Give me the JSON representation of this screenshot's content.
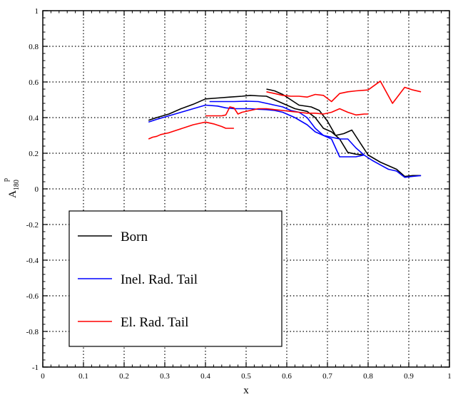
{
  "chart_data": {
    "type": "line",
    "xlabel": "x",
    "ylabel": "A",
    "ylabel_sup": "p",
    "ylabel_sub": "180",
    "xlim": [
      0,
      1
    ],
    "ylim": [
      -1,
      1
    ],
    "x_ticks": [
      0,
      0.1,
      0.2,
      0.3,
      0.4,
      0.5,
      0.6,
      0.7,
      0.8,
      0.9,
      1
    ],
    "x_tick_labels": [
      "0",
      "0.1",
      "0.2",
      "0.3",
      "0.4",
      "0.5",
      "0.6",
      "0.7",
      "0.8",
      "0.9",
      "1"
    ],
    "y_ticks": [
      -1,
      -0.8,
      -0.6,
      -0.4,
      -0.2,
      0,
      0.2,
      0.4,
      0.6,
      0.8,
      1
    ],
    "y_tick_labels": [
      "-1",
      "-0.8",
      "-0.6",
      "-0.4",
      "-0.2",
      "0",
      "0.2",
      "0.4",
      "0.6",
      "0.8",
      "1"
    ],
    "grid": true,
    "legend_position": "bottom-left",
    "series": [
      {
        "name": "Born",
        "color": "#000000",
        "segments": [
          [
            [
              0.26,
              0.385
            ],
            [
              0.28,
              0.4
            ],
            [
              0.31,
              0.42
            ],
            [
              0.34,
              0.45
            ],
            [
              0.37,
              0.475
            ],
            [
              0.4,
              0.505
            ],
            [
              0.43,
              0.51
            ],
            [
              0.46,
              0.515
            ],
            [
              0.49,
              0.52
            ],
            [
              0.51,
              0.525
            ],
            [
              0.53,
              0.522
            ],
            [
              0.55,
              0.52
            ],
            [
              0.57,
              0.5
            ],
            [
              0.59,
              0.48
            ],
            [
              0.62,
              0.45
            ],
            [
              0.65,
              0.435
            ],
            [
              0.67,
              0.4
            ],
            [
              0.69,
              0.34
            ],
            [
              0.71,
              0.32
            ],
            [
              0.73,
              0.28
            ],
            [
              0.75,
              0.205
            ],
            [
              0.77,
              0.195
            ],
            [
              0.79,
              0.19
            ]
          ],
          [
            [
              0.55,
              0.56
            ],
            [
              0.57,
              0.55
            ],
            [
              0.59,
              0.53
            ],
            [
              0.61,
              0.5
            ],
            [
              0.63,
              0.47
            ],
            [
              0.66,
              0.46
            ],
            [
              0.68,
              0.44
            ],
            [
              0.7,
              0.38
            ],
            [
              0.72,
              0.3
            ],
            [
              0.74,
              0.31
            ],
            [
              0.76,
              0.33
            ],
            [
              0.78,
              0.26
            ],
            [
              0.8,
              0.19
            ],
            [
              0.83,
              0.15
            ],
            [
              0.85,
              0.13
            ],
            [
              0.87,
              0.11
            ],
            [
              0.89,
              0.07
            ],
            [
              0.91,
              0.075
            ],
            [
              0.93,
              0.075
            ]
          ]
        ]
      },
      {
        "name": "Inel. Rad. Tail",
        "color": "#0000ff",
        "segments": [
          [
            [
              0.26,
              0.375
            ],
            [
              0.28,
              0.39
            ],
            [
              0.31,
              0.41
            ],
            [
              0.34,
              0.43
            ],
            [
              0.37,
              0.45
            ],
            [
              0.4,
              0.47
            ],
            [
              0.43,
              0.465
            ],
            [
              0.45,
              0.455
            ],
            [
              0.47,
              0.45
            ],
            [
              0.49,
              0.45
            ],
            [
              0.51,
              0.45
            ],
            [
              0.53,
              0.447
            ],
            [
              0.55,
              0.445
            ],
            [
              0.57,
              0.44
            ],
            [
              0.59,
              0.43
            ],
            [
              0.62,
              0.4
            ],
            [
              0.65,
              0.36
            ],
            [
              0.67,
              0.32
            ],
            [
              0.69,
              0.3
            ],
            [
              0.71,
              0.28
            ],
            [
              0.73,
              0.18
            ],
            [
              0.75,
              0.18
            ],
            [
              0.77,
              0.18
            ],
            [
              0.79,
              0.19
            ]
          ],
          [
            [
              0.41,
              0.49
            ],
            [
              0.44,
              0.49
            ],
            [
              0.47,
              0.49
            ],
            [
              0.5,
              0.492
            ],
            [
              0.53,
              0.49
            ],
            [
              0.55,
              0.48
            ],
            [
              0.57,
              0.47
            ],
            [
              0.59,
              0.46
            ],
            [
              0.61,
              0.44
            ],
            [
              0.63,
              0.43
            ],
            [
              0.65,
              0.4
            ],
            [
              0.67,
              0.34
            ],
            [
              0.69,
              0.3
            ],
            [
              0.71,
              0.29
            ],
            [
              0.73,
              0.28
            ],
            [
              0.75,
              0.28
            ],
            [
              0.77,
              0.23
            ],
            [
              0.79,
              0.19
            ],
            [
              0.81,
              0.16
            ],
            [
              0.83,
              0.135
            ],
            [
              0.85,
              0.11
            ],
            [
              0.87,
              0.1
            ],
            [
              0.89,
              0.065
            ],
            [
              0.91,
              0.07
            ],
            [
              0.93,
              0.075
            ]
          ]
        ]
      },
      {
        "name": "El. Rad. Tail",
        "color": "#ff0000",
        "segments": [
          [
            [
              0.26,
              0.28
            ],
            [
              0.27,
              0.29
            ],
            [
              0.28,
              0.295
            ],
            [
              0.29,
              0.305
            ],
            [
              0.3,
              0.31
            ],
            [
              0.31,
              0.315
            ],
            [
              0.33,
              0.33
            ],
            [
              0.35,
              0.345
            ],
            [
              0.37,
              0.36
            ],
            [
              0.39,
              0.37
            ],
            [
              0.4,
              0.375
            ],
            [
              0.42,
              0.365
            ],
            [
              0.44,
              0.35
            ],
            [
              0.45,
              0.34
            ],
            [
              0.47,
              0.34
            ]
          ],
          [
            [
              0.4,
              0.41
            ],
            [
              0.42,
              0.41
            ],
            [
              0.44,
              0.41
            ],
            [
              0.45,
              0.415
            ],
            [
              0.46,
              0.46
            ],
            [
              0.47,
              0.455
            ],
            [
              0.48,
              0.42
            ],
            [
              0.49,
              0.43
            ],
            [
              0.51,
              0.44
            ],
            [
              0.53,
              0.45
            ],
            [
              0.55,
              0.45
            ],
            [
              0.57,
              0.445
            ],
            [
              0.59,
              0.44
            ],
            [
              0.61,
              0.435
            ],
            [
              0.63,
              0.43
            ],
            [
              0.65,
              0.425
            ],
            [
              0.67,
              0.425
            ],
            [
              0.69,
              0.42
            ],
            [
              0.71,
              0.43
            ],
            [
              0.73,
              0.45
            ],
            [
              0.75,
              0.43
            ],
            [
              0.77,
              0.415
            ],
            [
              0.79,
              0.42
            ],
            [
              0.8,
              0.42
            ]
          ],
          [
            [
              0.55,
              0.545
            ],
            [
              0.57,
              0.535
            ],
            [
              0.59,
              0.525
            ],
            [
              0.61,
              0.52
            ],
            [
              0.63,
              0.52
            ],
            [
              0.65,
              0.515
            ],
            [
              0.67,
              0.53
            ],
            [
              0.69,
              0.525
            ],
            [
              0.71,
              0.49
            ],
            [
              0.73,
              0.535
            ],
            [
              0.75,
              0.545
            ],
            [
              0.77,
              0.55
            ],
            [
              0.8,
              0.555
            ],
            [
              0.83,
              0.605
            ],
            [
              0.86,
              0.48
            ],
            [
              0.89,
              0.57
            ],
            [
              0.91,
              0.555
            ],
            [
              0.93,
              0.545
            ]
          ]
        ]
      }
    ]
  }
}
